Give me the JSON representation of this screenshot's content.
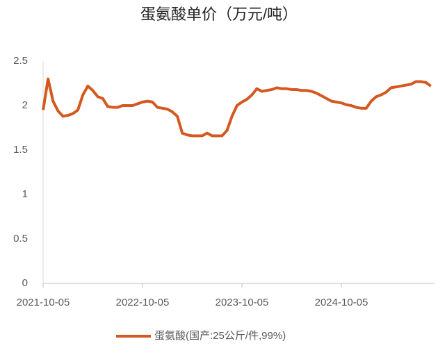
{
  "chart_data": {
    "type": "line",
    "title": "蛋氨酸单价（万元/吨）",
    "categories": [
      "2021-10-05",
      null,
      null,
      null,
      null,
      null,
      null,
      null,
      null,
      null,
      null,
      null,
      null,
      null,
      null,
      null,
      null,
      null,
      null,
      null,
      "2022-10-05",
      null,
      null,
      null,
      null,
      null,
      null,
      null,
      null,
      null,
      null,
      null,
      null,
      null,
      null,
      null,
      null,
      null,
      null,
      null,
      "2023-10-05",
      null,
      null,
      null,
      null,
      null,
      null,
      null,
      null,
      null,
      null,
      null,
      null,
      null,
      null,
      null,
      null,
      null,
      null,
      null,
      "2024-10-05",
      null,
      null,
      null,
      null,
      null,
      null,
      null,
      null,
      null,
      null,
      null,
      null,
      null,
      null,
      null,
      null,
      null,
      null
    ],
    "series": [
      {
        "name": "蛋氨酸(国产:25公斤/件,99%)",
        "color": "#d4581f",
        "values": [
          1.95,
          2.3,
          2.05,
          1.94,
          1.88,
          1.89,
          1.91,
          1.95,
          2.12,
          2.22,
          2.17,
          2.1,
          2.08,
          1.99,
          1.98,
          1.98,
          2.0,
          2.0,
          2.0,
          2.02,
          2.04,
          2.05,
          2.04,
          1.98,
          1.97,
          1.96,
          1.93,
          1.88,
          1.69,
          1.67,
          1.66,
          1.66,
          1.66,
          1.69,
          1.66,
          1.66,
          1.66,
          1.72,
          1.88,
          2.0,
          2.04,
          2.07,
          2.12,
          2.19,
          2.16,
          2.17,
          2.18,
          2.2,
          2.19,
          2.19,
          2.18,
          2.18,
          2.17,
          2.17,
          2.16,
          2.14,
          2.11,
          2.08,
          2.05,
          2.04,
          2.03,
          2.01,
          2.0,
          1.98,
          1.97,
          1.97,
          2.05,
          2.1,
          2.12,
          2.15,
          2.2,
          2.21,
          2.22,
          2.23,
          2.24,
          2.27,
          2.27,
          2.26,
          2.22
        ]
      }
    ],
    "ylim": [
      0,
      2.5
    ],
    "yticks": [
      0,
      0.5,
      1,
      1.5,
      2,
      2.5
    ]
  }
}
